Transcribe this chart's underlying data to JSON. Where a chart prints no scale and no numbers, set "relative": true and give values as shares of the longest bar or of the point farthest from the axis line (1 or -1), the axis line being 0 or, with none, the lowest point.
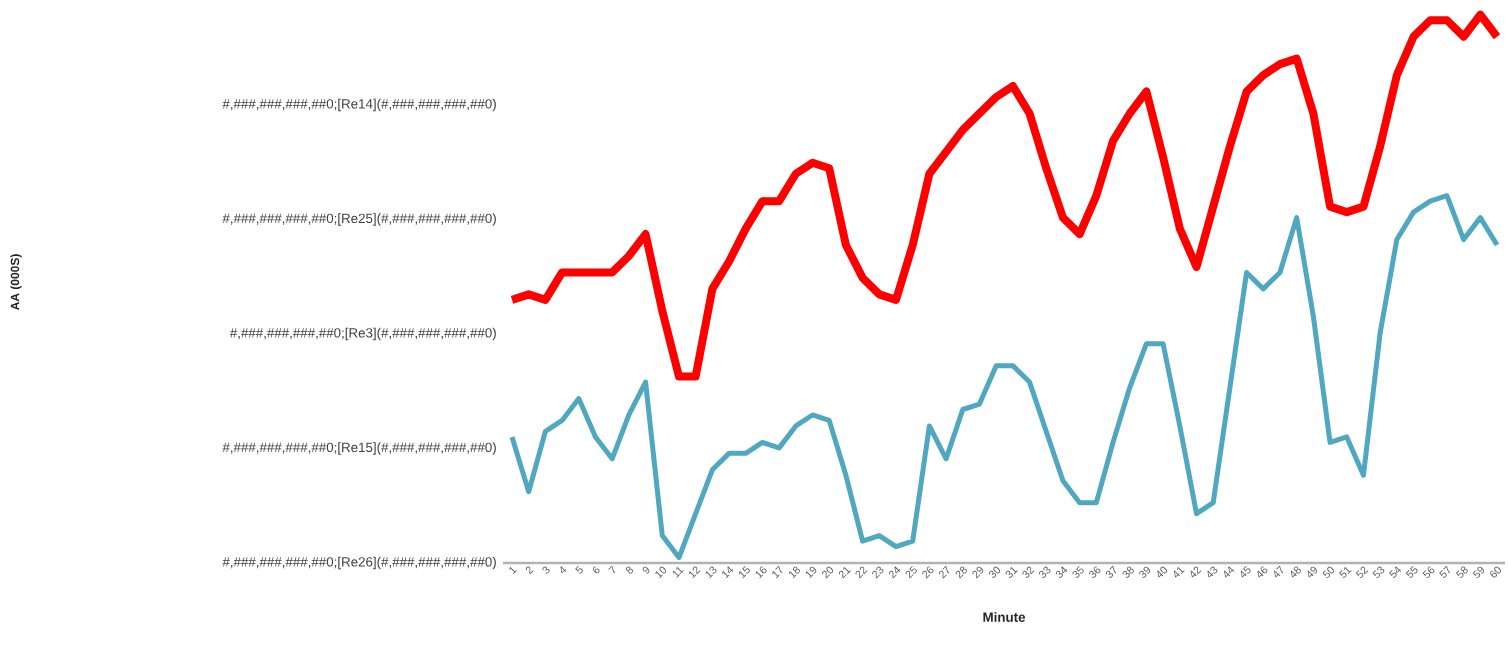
{
  "chart_data": {
    "type": "line",
    "relative": true,
    "xlabel": "Minute",
    "categories": [
      "1",
      "2",
      "3",
      "4",
      "5",
      "6",
      "7",
      "8",
      "9",
      "10",
      "11",
      "12",
      "13",
      "14",
      "15",
      "16",
      "17",
      "18",
      "19",
      "20",
      "21",
      "22",
      "23",
      "24",
      "25",
      "26",
      "27",
      "28",
      "29",
      "30",
      "31",
      "32",
      "33",
      "34",
      "35",
      "36",
      "37",
      "38",
      "39",
      "40",
      "41",
      "42",
      "43",
      "44",
      "45",
      "46",
      "47",
      "48",
      "49",
      "50",
      "51",
      "52",
      "53",
      "54",
      "55",
      "56",
      "57",
      "58",
      "59",
      "60"
    ],
    "annotations": [
      "AA (000S)",
      "#,###,###,###,##0;[Re14](#,###,###,###,##0)",
      "#,###,###,###,##0;[Re25](#,###,###,###,##0)",
      "#,###,###,###,##0;[Re3](#,###,###,###,##0)",
      "#,###,###,###,##0;[Re15](#,###,###,###,##0)",
      "#,###,###,###,##0;[Re26](#,###,###,###,##0)"
    ],
    "series": [
      {
        "color": "#ff0000",
        "values": [
          0.48,
          0.49,
          0.48,
          0.53,
          0.53,
          0.53,
          0.53,
          0.56,
          0.6,
          0.46,
          0.34,
          0.34,
          0.5,
          0.55,
          0.61,
          0.66,
          0.66,
          0.71,
          0.73,
          0.72,
          0.58,
          0.52,
          0.49,
          0.48,
          0.58,
          0.71,
          0.75,
          0.79,
          0.82,
          0.85,
          0.87,
          0.82,
          0.72,
          0.63,
          0.6,
          0.67,
          0.77,
          0.82,
          0.86,
          0.74,
          0.61,
          0.54,
          0.65,
          0.76,
          0.86,
          0.89,
          0.91,
          0.92,
          0.82,
          0.65,
          0.64,
          0.65,
          0.76,
          0.89,
          0.96,
          0.99,
          0.99,
          0.96,
          1,
          0.96
        ]
      },
      {
        "color": "#4fa8c0",
        "values": [
          0.23,
          0.13,
          0.24,
          0.26,
          0.3,
          0.23,
          0.19,
          0.27,
          0.33,
          0.05,
          0.01,
          0.09,
          0.17,
          0.2,
          0.2,
          0.22,
          0.21,
          0.25,
          0.27,
          0.26,
          0.16,
          0.04,
          0.05,
          0.03,
          0.04,
          0.25,
          0.19,
          0.28,
          0.29,
          0.36,
          0.36,
          0.33,
          0.24,
          0.15,
          0.11,
          0.11,
          0.22,
          0.32,
          0.4,
          0.4,
          0.25,
          0.09,
          0.11,
          0.32,
          0.53,
          0.5,
          0.53,
          0.63,
          0.45,
          0.22,
          0.23,
          0.16,
          0.42,
          0.59,
          0.64,
          0.66,
          0.67,
          0.59,
          0.63,
          0.58
        ]
      }
    ]
  }
}
